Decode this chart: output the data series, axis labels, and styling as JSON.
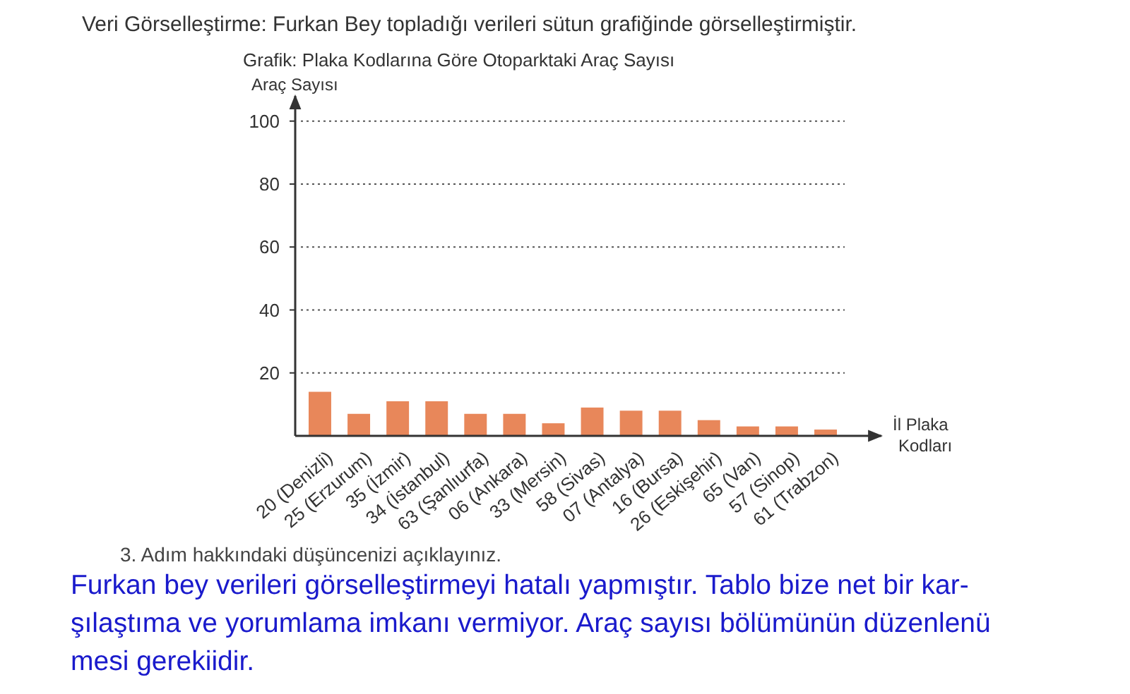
{
  "chart_data": {
    "type": "bar",
    "title": "Grafik: Plaka Kodlarına Göre Otoparktaki Araç Sayısı",
    "xlabel": "İl Plaka Kodları",
    "ylabel": "Araç Sayısı",
    "categories": [
      "20 (Denizli)",
      "25 (Erzurum)",
      "35 (İzmir)",
      "34 (İstanbul)",
      "63 (Şanlıurfa)",
      "06 (Ankara)",
      "33 (Mersin)",
      "58 (Sivas)",
      "07 (Antalya)",
      "16 (Bursa)",
      "26 (Eskişehir)",
      "65 (Van)",
      "57 (Sinop)",
      "61 (Trabzon)"
    ],
    "values": [
      14,
      7,
      11,
      11,
      7,
      7,
      4,
      9,
      8,
      8,
      5,
      3,
      3,
      2
    ],
    "color": "#e8875a",
    "ylim": [
      0,
      108
    ],
    "yticks": [
      20,
      40,
      60,
      80,
      100
    ],
    "grid": "y",
    "annotations": [
      "Veri Görselleştirme: Furkan Bey topladığı verileri sütun grafiğinde görselleştirmiştir.",
      "3. Adım hakkındaki düşüncenizi açıklayınız.",
      "Furkan bey verileri görselleştirmeyi hatalı yapmıştır. Tablo bize net bir kar-",
      "şılaştıma ve yorumlama imkanı vermiyor. Araç sayısı bölümünün düzenlenü",
      "mesi gerekiidir."
    ]
  }
}
